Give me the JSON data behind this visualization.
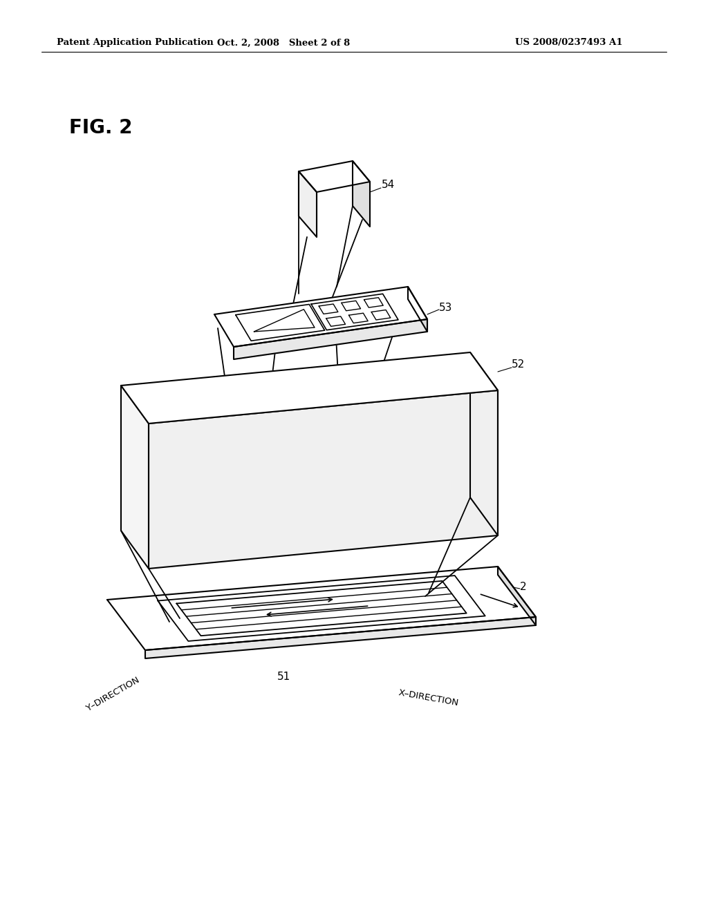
{
  "header_left": "Patent Application Publication",
  "header_center": "Oct. 2, 2008   Sheet 2 of 8",
  "header_right": "US 2008/0237493 A1",
  "fig_label": "FIG. 2",
  "bg_color": "#ffffff",
  "line_color": "#000000"
}
